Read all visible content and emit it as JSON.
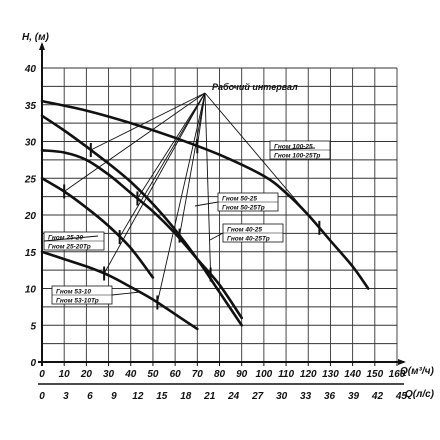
{
  "chart_data": {
    "type": "line",
    "ylabel": "H, (м)",
    "xlabel_m3h": "Q(м³/ч)",
    "xlabel_ls": "Q(л/с)",
    "xlim": [
      0,
      160
    ],
    "ylim": [
      0,
      40
    ],
    "x_ticks_m3h": [
      "0",
      "10",
      "20",
      "30",
      "40",
      "50",
      "60",
      "70",
      "80",
      "90",
      "100",
      "110",
      "120",
      "130",
      "140",
      "150",
      "160"
    ],
    "x_ticks_ls": [
      "0",
      "3",
      "6",
      "9",
      "12",
      "15",
      "18",
      "21",
      "24",
      "27",
      "30",
      "33",
      "36",
      "39",
      "42",
      "45"
    ],
    "y_ticks": [
      "40",
      "35",
      "30",
      "25",
      "20",
      "15",
      "10",
      "5",
      "0"
    ],
    "annotation": "Рабочий интервал",
    "series": [
      {
        "name": "Гном 100-25",
        "name2": "Гном 100-25Тр",
        "points": [
          [
            0,
            35.5
          ],
          [
            20,
            34.2
          ],
          [
            40,
            32.5
          ],
          [
            60,
            30.5
          ],
          [
            80,
            28.2
          ],
          [
            100,
            25.3
          ],
          [
            110,
            23
          ],
          [
            120,
            20
          ],
          [
            130,
            16.5
          ],
          [
            140,
            13
          ],
          [
            147,
            10
          ]
        ],
        "work_range": [
          70,
          125
        ]
      },
      {
        "name": "Гном 50-25",
        "name2": "Гном 50-25Тр",
        "points": [
          [
            0,
            33.5
          ],
          [
            10,
            31.5
          ],
          [
            20,
            29.3
          ],
          [
            30,
            27
          ],
          [
            40,
            24.5
          ],
          [
            50,
            21.5
          ],
          [
            60,
            18
          ],
          [
            70,
            14
          ],
          [
            80,
            9.5
          ],
          [
            90,
            5
          ]
        ],
        "work_range": [
          22,
          62
        ]
      },
      {
        "name": "Гном 40-25",
        "name2": "Гном 40-25Тр",
        "points": [
          [
            0,
            28.8
          ],
          [
            10,
            28.5
          ],
          [
            20,
            27.5
          ],
          [
            30,
            25.5
          ],
          [
            40,
            23
          ],
          [
            50,
            20.5
          ],
          [
            60,
            17.5
          ],
          [
            70,
            14
          ],
          [
            80,
            10.5
          ],
          [
            90,
            6
          ]
        ],
        "work_range": [
          43,
          76
        ]
      },
      {
        "name": "Гном 25-20",
        "name2": "Гном 25-20Тр",
        "points": [
          [
            0,
            25
          ],
          [
            10,
            23.2
          ],
          [
            20,
            21
          ],
          [
            30,
            18.5
          ],
          [
            40,
            15.5
          ],
          [
            50,
            11.5
          ]
        ],
        "work_range": [
          10,
          35
        ]
      },
      {
        "name": "Гном 53-10",
        "name2": "Гном 53-10Тр",
        "points": [
          [
            0,
            15
          ],
          [
            10,
            14
          ],
          [
            20,
            13
          ],
          [
            30,
            11.8
          ],
          [
            40,
            10.2
          ],
          [
            50,
            8.5
          ],
          [
            60,
            6.5
          ],
          [
            70,
            4.5
          ]
        ],
        "work_range": [
          28,
          52
        ]
      }
    ]
  }
}
